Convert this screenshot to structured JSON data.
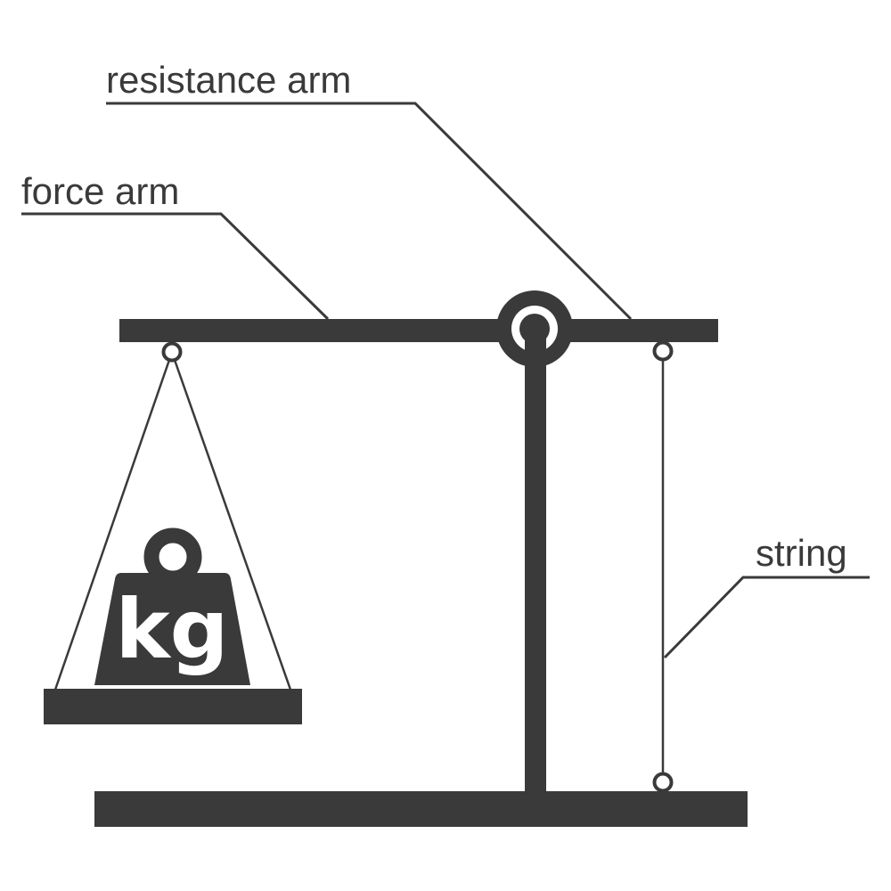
{
  "labels": {
    "resistance_arm": "resistance arm",
    "force_arm": "force arm",
    "string": "string",
    "weight_unit": "kg"
  },
  "colors": {
    "ink": "#3a3a3a",
    "background": "#ffffff"
  }
}
